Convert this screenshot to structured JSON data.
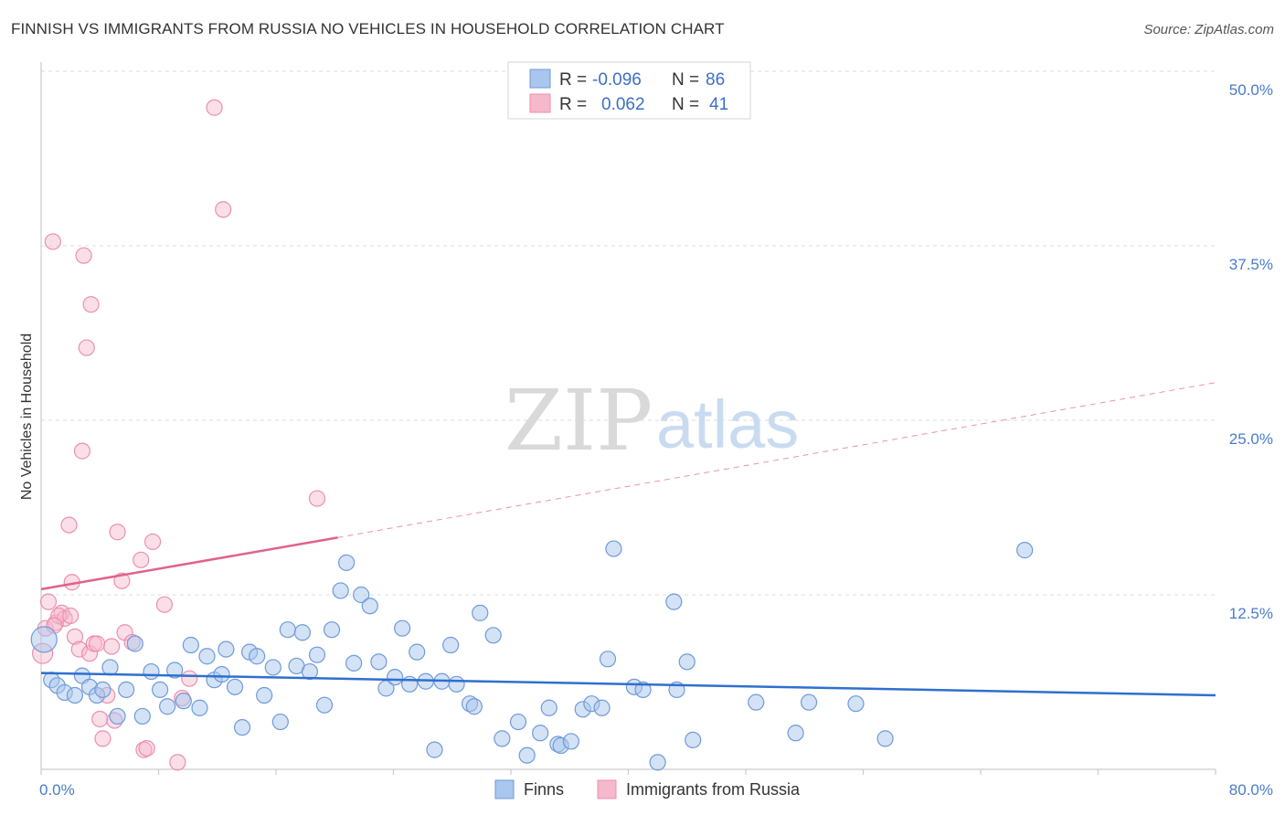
{
  "title": "FINNISH VS IMMIGRANTS FROM RUSSIA NO VEHICLES IN HOUSEHOLD CORRELATION CHART",
  "source": "Source: ZipAtlas.com",
  "watermark": {
    "zip": "ZIP",
    "atlas": "atlas"
  },
  "colors": {
    "blue_fill": "#a9c6ee",
    "blue_stroke": "#6e9bd8",
    "blue_line": "#2f6fcf",
    "pink_fill": "#f6b8cb",
    "pink_stroke": "#ec8fae",
    "pink_line": "#e0628e",
    "grid": "#dddddd",
    "axis_text": "#4a7cc9"
  },
  "legend": {
    "r_label": "R =",
    "n_label": "N =",
    "rows": [
      {
        "series": "Finns",
        "r": "-0.096",
        "n": "86"
      },
      {
        "series": "Immigrants from Russia",
        "r": "0.062",
        "n": "41"
      }
    ]
  },
  "chart_data": {
    "type": "scatter",
    "title": "FINNISH VS IMMIGRANTS FROM RUSSIA NO VEHICLES IN HOUSEHOLD CORRELATION CHART",
    "xlabel": "",
    "ylabel": "No Vehicles in Household",
    "xlim": [
      0,
      80
    ],
    "ylim": [
      0,
      50
    ],
    "x_tick_labels": [
      "0.0%",
      "80.0%"
    ],
    "y_tick_labels": [
      "50.0%",
      "37.5%",
      "25.0%",
      "12.5%"
    ],
    "y_ticks": [
      50,
      37.5,
      25,
      12.5
    ],
    "grid": true,
    "series": [
      {
        "name": "Finns",
        "points": [
          [
            0.2,
            9.3
          ],
          [
            0.7,
            6.4
          ],
          [
            1.1,
            6.0
          ],
          [
            1.6,
            5.5
          ],
          [
            2.3,
            5.3
          ],
          [
            2.8,
            6.7
          ],
          [
            3.3,
            5.9
          ],
          [
            3.8,
            5.3
          ],
          [
            4.2,
            5.7
          ],
          [
            4.7,
            7.3
          ],
          [
            5.2,
            3.8
          ],
          [
            5.8,
            5.7
          ],
          [
            6.4,
            9.0
          ],
          [
            6.9,
            3.8
          ],
          [
            7.5,
            7.0
          ],
          [
            8.1,
            5.7
          ],
          [
            8.6,
            4.5
          ],
          [
            9.1,
            7.1
          ],
          [
            9.7,
            4.9
          ],
          [
            10.2,
            8.9
          ],
          [
            10.8,
            4.4
          ],
          [
            11.3,
            8.1
          ],
          [
            11.8,
            6.4
          ],
          [
            12.3,
            6.8
          ],
          [
            12.6,
            8.6
          ],
          [
            13.2,
            5.9
          ],
          [
            13.7,
            3.0
          ],
          [
            14.2,
            8.4
          ],
          [
            14.7,
            8.1
          ],
          [
            15.2,
            5.3
          ],
          [
            15.8,
            7.3
          ],
          [
            16.3,
            3.4
          ],
          [
            16.8,
            10.0
          ],
          [
            17.4,
            7.4
          ],
          [
            17.8,
            9.8
          ],
          [
            18.3,
            7.0
          ],
          [
            18.8,
            8.2
          ],
          [
            19.3,
            4.6
          ],
          [
            19.8,
            10.0
          ],
          [
            20.4,
            12.8
          ],
          [
            20.8,
            14.8
          ],
          [
            21.3,
            7.6
          ],
          [
            21.8,
            12.5
          ],
          [
            22.4,
            11.7
          ],
          [
            23.0,
            7.7
          ],
          [
            23.5,
            5.8
          ],
          [
            24.1,
            6.6
          ],
          [
            24.6,
            10.1
          ],
          [
            25.1,
            6.1
          ],
          [
            25.6,
            8.4
          ],
          [
            26.2,
            6.3
          ],
          [
            26.8,
            1.4
          ],
          [
            27.3,
            6.3
          ],
          [
            27.9,
            8.9
          ],
          [
            28.3,
            6.1
          ],
          [
            29.2,
            4.7
          ],
          [
            29.5,
            4.5
          ],
          [
            29.9,
            11.2
          ],
          [
            30.8,
            9.6
          ],
          [
            31.4,
            2.2
          ],
          [
            32.5,
            3.4
          ],
          [
            33.1,
            1.0
          ],
          [
            34.0,
            2.6
          ],
          [
            34.6,
            4.4
          ],
          [
            35.2,
            1.8
          ],
          [
            35.4,
            1.7
          ],
          [
            36.1,
            2.0
          ],
          [
            36.9,
            4.3
          ],
          [
            37.5,
            4.7
          ],
          [
            38.2,
            4.4
          ],
          [
            38.6,
            7.9
          ],
          [
            39.0,
            15.8
          ],
          [
            40.4,
            5.9
          ],
          [
            41.0,
            5.7
          ],
          [
            42.0,
            0.5
          ],
          [
            43.1,
            12.0
          ],
          [
            43.3,
            5.7
          ],
          [
            44.0,
            7.7
          ],
          [
            44.4,
            2.1
          ],
          [
            48.7,
            4.8
          ],
          [
            51.4,
            2.6
          ],
          [
            52.3,
            4.8
          ],
          [
            55.5,
            4.7
          ],
          [
            57.5,
            2.2
          ],
          [
            67.0,
            15.7
          ]
        ],
        "trend": {
          "x": [
            0,
            80
          ],
          "y": [
            6.9,
            5.3
          ]
        }
      },
      {
        "name": "Immigrants from Russia",
        "points": [
          [
            0.1,
            8.3
          ],
          [
            0.3,
            10.1
          ],
          [
            0.5,
            12.0
          ],
          [
            0.8,
            37.8
          ],
          [
            1.0,
            10.5
          ],
          [
            1.4,
            11.2
          ],
          [
            1.6,
            10.8
          ],
          [
            1.9,
            17.5
          ],
          [
            2.1,
            13.4
          ],
          [
            2.3,
            9.5
          ],
          [
            2.6,
            8.6
          ],
          [
            2.8,
            22.8
          ],
          [
            2.9,
            36.8
          ],
          [
            3.1,
            30.2
          ],
          [
            3.3,
            8.3
          ],
          [
            3.4,
            33.3
          ],
          [
            3.6,
            9.0
          ],
          [
            3.8,
            9.0
          ],
          [
            4.0,
            3.6
          ],
          [
            4.2,
            2.2
          ],
          [
            4.5,
            5.3
          ],
          [
            4.8,
            8.8
          ],
          [
            5.0,
            3.5
          ],
          [
            5.2,
            17.0
          ],
          [
            5.5,
            13.5
          ],
          [
            5.7,
            9.8
          ],
          [
            6.2,
            9.1
          ],
          [
            6.8,
            15.0
          ],
          [
            7.0,
            1.4
          ],
          [
            7.2,
            1.5
          ],
          [
            7.6,
            16.3
          ],
          [
            8.4,
            11.8
          ],
          [
            9.3,
            0.5
          ],
          [
            9.6,
            5.1
          ],
          [
            10.1,
            6.5
          ],
          [
            11.8,
            47.4
          ],
          [
            12.4,
            40.1
          ],
          [
            18.8,
            19.4
          ],
          [
            1.2,
            11.0
          ],
          [
            0.9,
            10.3
          ],
          [
            2.0,
            11.0
          ]
        ],
        "trend_solid": {
          "x": [
            0,
            20.2
          ],
          "y": [
            12.9,
            16.6
          ]
        },
        "trend_dashed": {
          "x": [
            20.2,
            80
          ],
          "y": [
            16.6,
            27.7
          ]
        }
      }
    ]
  }
}
